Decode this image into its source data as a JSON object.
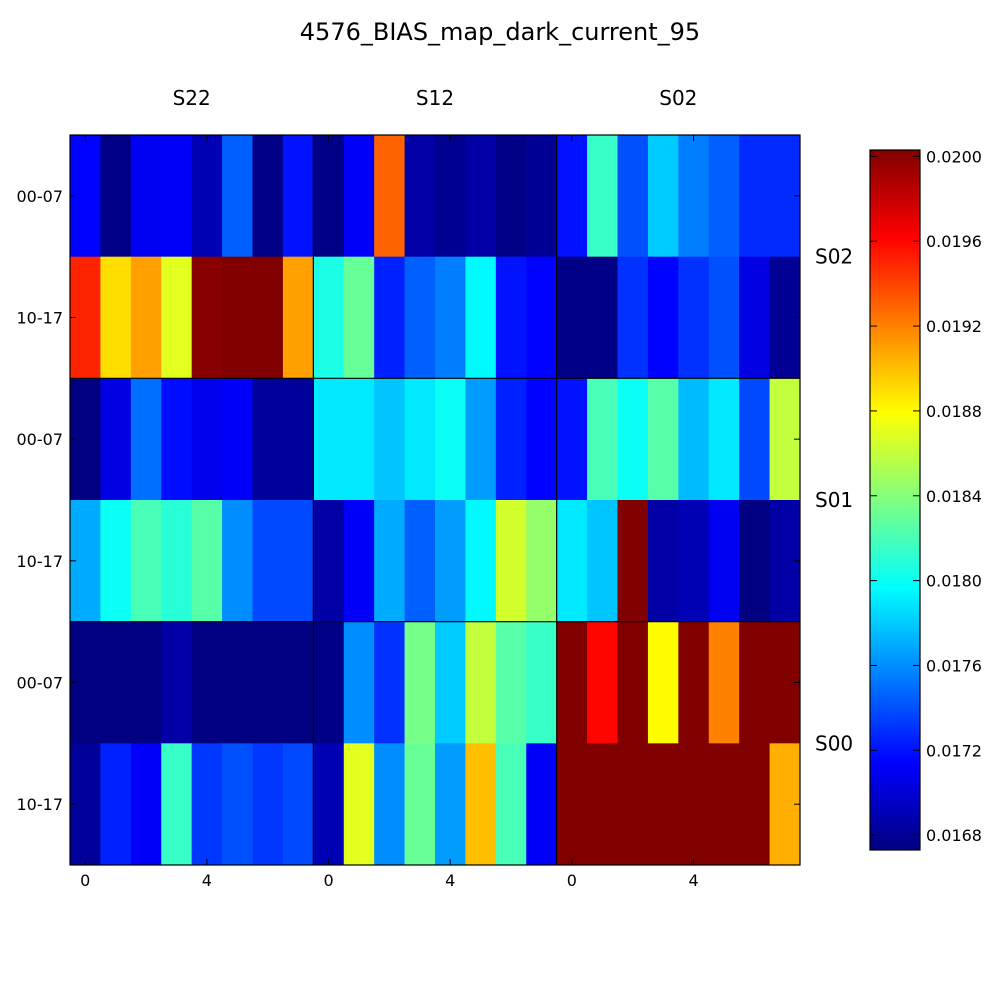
{
  "chart_data": {
    "type": "heatmap",
    "title": "4576_BIAS_map_dark_current_95",
    "column_labels": [
      "S22",
      "S12",
      "S02"
    ],
    "row_labels": [
      "S02",
      "S01",
      "S00"
    ],
    "ytick_labels": [
      "00-07",
      "10-17",
      "00-07",
      "10-17",
      "00-07",
      "10-17"
    ],
    "xtick_labels": [
      "0",
      "4",
      "0",
      "4",
      "0",
      "4"
    ],
    "xtick_positions": [
      0,
      4,
      8,
      12,
      16,
      20
    ],
    "colormap": "jet",
    "vmin": 0.01673,
    "vmax": 0.02003,
    "colorbar_ticks": [
      "0.0168",
      "0.0172",
      "0.0176",
      "0.0180",
      "0.0184",
      "0.0188",
      "0.0192",
      "0.0196",
      "0.0200"
    ],
    "colorbar_tick_values": [
      0.0168,
      0.0172,
      0.0176,
      0.018,
      0.0184,
      0.0188,
      0.0192,
      0.0196,
      0.02
    ],
    "values": [
      [
        0.01715,
        0.01675,
        0.0171,
        0.01712,
        0.0169,
        0.01745,
        0.01675,
        0.0172,
        0.01675,
        0.01712,
        0.0193,
        0.01685,
        0.01678,
        0.01685,
        0.01675,
        0.0168,
        0.0172,
        0.01815,
        0.0174,
        0.0178,
        0.01755,
        0.01745,
        0.01728,
        0.01728
      ],
      [
        0.0195,
        0.0189,
        0.0191,
        0.0187,
        0.02,
        0.0202,
        0.0202,
        0.0191,
        0.01805,
        0.0183,
        0.01725,
        0.01745,
        0.01755,
        0.01795,
        0.0172,
        0.01715,
        0.01675,
        0.01675,
        0.0173,
        0.01715,
        0.0173,
        0.0174,
        0.01705,
        0.0168
      ],
      [
        0.01673,
        0.01705,
        0.0175,
        0.01718,
        0.01708,
        0.01712,
        0.01682,
        0.01682,
        0.0179,
        0.0179,
        0.01778,
        0.0179,
        0.018,
        0.01765,
        0.01725,
        0.01715,
        0.0172,
        0.0182,
        0.018,
        0.01825,
        0.01775,
        0.0179,
        0.01738,
        0.0186
      ],
      [
        0.0177,
        0.018,
        0.0182,
        0.0181,
        0.01825,
        0.0176,
        0.01738,
        0.01738,
        0.01685,
        0.01712,
        0.0177,
        0.01745,
        0.01765,
        0.01795,
        0.01865,
        0.01845,
        0.0179,
        0.01778,
        0.0202,
        0.01685,
        0.0169,
        0.0171,
        0.01673,
        0.01685
      ],
      [
        0.01673,
        0.01673,
        0.01673,
        0.01685,
        0.01673,
        0.01673,
        0.01673,
        0.01673,
        0.01675,
        0.0176,
        0.0173,
        0.01835,
        0.0178,
        0.0186,
        0.01825,
        0.01815,
        0.0202,
        0.0196,
        0.0202,
        0.0188,
        0.0202,
        0.0192,
        0.0202,
        0.0202
      ],
      [
        0.01682,
        0.01725,
        0.01712,
        0.01815,
        0.01732,
        0.0174,
        0.01732,
        0.01738,
        0.0169,
        0.0187,
        0.0176,
        0.0183,
        0.01765,
        0.019,
        0.0182,
        0.01712,
        0.0202,
        0.0202,
        0.0202,
        0.0202,
        0.0202,
        0.0202,
        0.0202,
        0.01905
      ]
    ]
  }
}
